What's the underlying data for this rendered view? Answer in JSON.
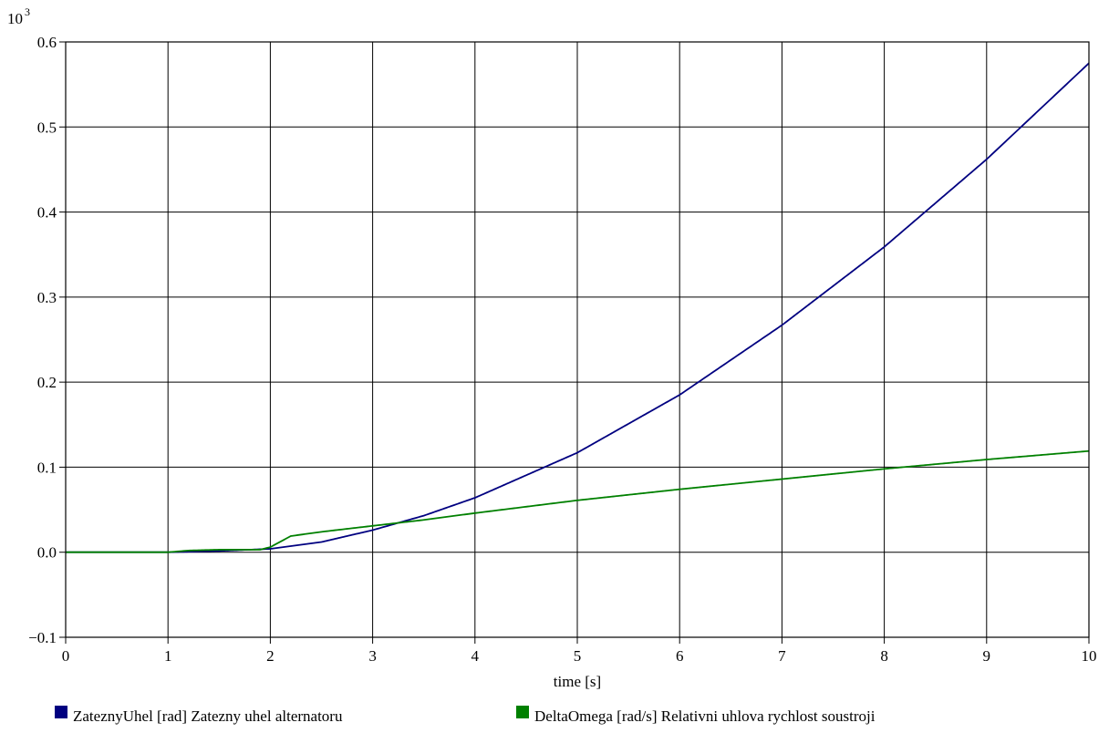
{
  "chart_data": {
    "type": "line",
    "title": "",
    "xlabel": "time [s]",
    "ylabel": "",
    "y_scale_label": {
      "base": "10",
      "exponent": "3"
    },
    "xlim": [
      0,
      10
    ],
    "ylim": [
      -0.1,
      0.6
    ],
    "x_ticks": [
      0,
      1,
      2,
      3,
      4,
      5,
      6,
      7,
      8,
      9,
      10
    ],
    "x_tick_labels": [
      "0",
      "1",
      "2",
      "3",
      "4",
      "5",
      "6",
      "7",
      "8",
      "9",
      "10"
    ],
    "y_ticks": [
      -0.1,
      0.0,
      0.1,
      0.2,
      0.3,
      0.4,
      0.5,
      0.6
    ],
    "y_tick_labels": [
      "−0.1",
      "0.0",
      "0.1",
      "0.2",
      "0.3",
      "0.4",
      "0.5",
      "0.6"
    ],
    "grid": true,
    "legend_position": "bottom",
    "series": [
      {
        "name": "ZateznyUhel [rad] Zatezny uhel alternatoru",
        "color": "#000080",
        "x": [
          0,
          1,
          1.5,
          2,
          2.5,
          3,
          3.5,
          4,
          5,
          6,
          7,
          8,
          9,
          10
        ],
        "y": [
          0.0,
          0.0,
          0.0015,
          0.004,
          0.012,
          0.026,
          0.043,
          0.064,
          0.117,
          0.185,
          0.267,
          0.359,
          0.462,
          0.575
        ]
      },
      {
        "name": "DeltaOmega [rad/s] Relativni uhlova rychlost soustroji",
        "color": "#008000",
        "x": [
          0,
          1,
          1.2,
          1.5,
          1.9,
          2,
          2.2,
          2.5,
          3,
          3.5,
          4,
          5,
          6,
          7,
          8,
          9,
          10
        ],
        "y": [
          0.0,
          0.0,
          0.002,
          0.003,
          0.003,
          0.006,
          0.019,
          0.024,
          0.031,
          0.038,
          0.046,
          0.061,
          0.074,
          0.086,
          0.098,
          0.109,
          0.119
        ]
      }
    ]
  }
}
